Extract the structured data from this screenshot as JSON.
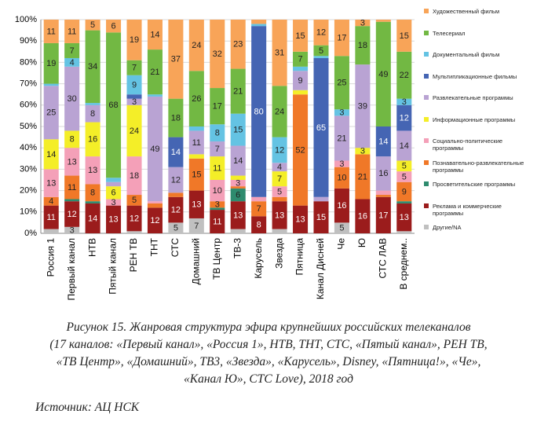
{
  "chart_data": {
    "type": "stacked_bar",
    "categories": [
      "Россия 1",
      "Первый канал",
      "НТВ",
      "Пятый канал",
      "РЕН ТВ",
      "ТНТ",
      "СТС",
      "Домашний",
      "ТВ Центр",
      "ТВ-3",
      "Карусель",
      "Звезда",
      "Пятница",
      "Канал Дисней",
      "Че",
      "Ю",
      "СТС ЛАВ",
      "В среднем.."
    ],
    "series": [
      {
        "name": "Другие/NA",
        "color": "#c0c0c0",
        "values": [
          2,
          3,
          0,
          0,
          1,
          0,
          5,
          7,
          0,
          2,
          0,
          2,
          0,
          0,
          5,
          0,
          0,
          1
        ]
      },
      {
        "name": "Реклама и коммерческие программы",
        "color": "#9b1c1c",
        "values": [
          11,
          12,
          14,
          13,
          12,
          12,
          12,
          13,
          11,
          13,
          8,
          13,
          13,
          15,
          16,
          16,
          17,
          13
        ]
      },
      {
        "name": "Просветительские программы",
        "color": "#2e8b6e",
        "values": [
          0,
          1,
          1,
          0,
          0,
          0,
          0,
          0,
          1,
          6,
          0,
          0,
          0,
          0,
          0,
          0,
          0,
          1
        ]
      },
      {
        "name": "Познавательно-развлекательные программы",
        "color": "#f07828",
        "values": [
          4,
          11,
          8,
          0,
          5,
          2,
          2,
          15,
          3,
          1,
          7,
          2,
          52,
          0,
          10,
          21,
          1,
          9
        ]
      },
      {
        "name": "Социально-политические программы",
        "color": "#f4a0b8",
        "values": [
          13,
          13,
          13,
          3,
          18,
          1,
          0,
          0,
          10,
          3,
          2,
          5,
          0,
          0,
          3,
          0,
          2,
          5
        ]
      },
      {
        "name": "Информационные программы",
        "color": "#f4ee28",
        "values": [
          14,
          8,
          16,
          6,
          24,
          0,
          0,
          2,
          11,
          2,
          0,
          7,
          2,
          0,
          0,
          3,
          0,
          5
        ]
      },
      {
        "name": "Развлекательные программы",
        "color": "#b9a3d3",
        "values": [
          25,
          30,
          8,
          2,
          3,
          49,
          12,
          11,
          7,
          14,
          0,
          4,
          9,
          2,
          21,
          39,
          16,
          14
        ]
      },
      {
        "name": "Мультипликационные фильмы",
        "color": "#4565b3",
        "values": [
          0,
          0,
          0,
          0,
          2,
          0,
          14,
          0,
          0,
          0,
          80,
          0,
          0,
          65,
          0,
          0,
          14,
          12
        ]
      },
      {
        "name": "Документальный фильм",
        "color": "#64c3e3",
        "values": [
          1,
          4,
          1,
          2,
          9,
          1,
          0,
          2,
          8,
          15,
          1,
          12,
          2,
          1,
          3,
          0,
          0,
          3
        ]
      },
      {
        "name": "Телесериал",
        "color": "#72b843",
        "values": [
          19,
          7,
          34,
          68,
          7,
          21,
          18,
          26,
          17,
          21,
          0,
          24,
          7,
          5,
          25,
          18,
          49,
          22
        ]
      },
      {
        "name": "Художественный фильм",
        "color": "#f8a458",
        "values": [
          11,
          11,
          5,
          6,
          19,
          14,
          37,
          24,
          32,
          23,
          2,
          31,
          15,
          12,
          17,
          3,
          1,
          15
        ]
      }
    ],
    "ylim": [
      0,
      100
    ],
    "yticks": [
      {
        "value": 0,
        "label": "0%"
      },
      {
        "value": 10,
        "label": "10%"
      },
      {
        "value": 20,
        "label": "20%"
      },
      {
        "value": 30,
        "label": "30%"
      },
      {
        "value": 40,
        "label": "40%"
      },
      {
        "value": 50,
        "label": "50%"
      },
      {
        "value": 60,
        "label": "60%"
      },
      {
        "value": 70,
        "label": "70%"
      },
      {
        "value": 80,
        "label": "80%"
      },
      {
        "value": 90,
        "label": "90%"
      },
      {
        "value": 100,
        "label": "100%"
      }
    ],
    "caption": [
      "Рисунок 15. Жанровая структура эфира крупнейших российских телеканалов",
      "(17 каналов: «Первый канал», «Россия 1», НТВ, ТНТ, СТС, «Пятый канал», РЕН ТВ,",
      "«ТВ Центр», «Домашний», ТВ3, «Звезда», «Карусель», Disney, «Пятница!», «Че»,",
      "«Канал Ю», СТС Love), 2018 год"
    ],
    "source": "Источник: АЦ НСК"
  }
}
